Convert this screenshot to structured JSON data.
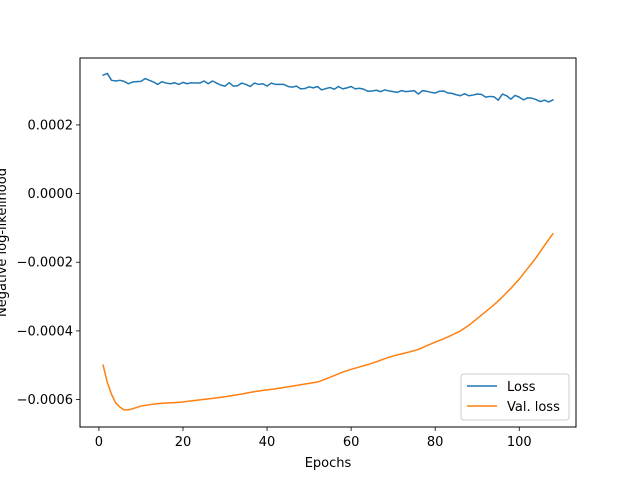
{
  "chart_data": {
    "type": "line",
    "title": "",
    "xlabel": "Epochs",
    "ylabel": "Negative log-likelihood",
    "xlim": [
      -4.5,
      113.5
    ],
    "ylim": [
      -0.00068,
      0.000395
    ],
    "xticks": [
      0,
      20,
      40,
      60,
      80,
      100
    ],
    "yticks": [
      -0.0006,
      -0.0004,
      -0.0002,
      0.0,
      0.0002
    ],
    "ytick_labels": [
      "−0.0006",
      "−0.0004",
      "−0.0002",
      "0.0000",
      "0.0002"
    ],
    "grid": false,
    "legend_position": "lower-right",
    "series": [
      {
        "name": "Loss",
        "color": "#1f77b4",
        "x": [
          1,
          2,
          3,
          4,
          5,
          6,
          7,
          8,
          9,
          10,
          11,
          12,
          13,
          14,
          15,
          16,
          17,
          18,
          19,
          20,
          21,
          22,
          23,
          24,
          25,
          26,
          27,
          28,
          29,
          30,
          31,
          32,
          33,
          34,
          35,
          36,
          37,
          38,
          39,
          40,
          41,
          42,
          43,
          44,
          45,
          46,
          47,
          48,
          49,
          50,
          51,
          52,
          53,
          54,
          55,
          56,
          57,
          58,
          59,
          60,
          61,
          62,
          63,
          64,
          65,
          66,
          67,
          68,
          69,
          70,
          71,
          72,
          73,
          74,
          75,
          76,
          77,
          78,
          79,
          80,
          81,
          82,
          83,
          84,
          85,
          86,
          87,
          88,
          89,
          90,
          91,
          92,
          93,
          94,
          95,
          96,
          97,
          98,
          99,
          100,
          101,
          102,
          103,
          104,
          105,
          106,
          107,
          108
        ],
        "y": [
          0.000345,
          0.00035,
          0.00033,
          0.000328,
          0.00033,
          0.000327,
          0.00032,
          0.000325,
          0.000326,
          0.000327,
          0.000335,
          0.00033,
          0.000325,
          0.000318,
          0.000326,
          0.000322,
          0.00032,
          0.000323,
          0.000318,
          0.000324,
          0.00032,
          0.000323,
          0.000322,
          0.000322,
          0.000328,
          0.00032,
          0.000328,
          0.000322,
          0.000316,
          0.000313,
          0.000323,
          0.000313,
          0.000314,
          0.000322,
          0.000318,
          0.000312,
          0.000322,
          0.000318,
          0.00032,
          0.000313,
          0.000322,
          0.000318,
          0.000318,
          0.000318,
          0.000312,
          0.00031,
          0.000313,
          0.000305,
          0.000306,
          0.000311,
          0.000308,
          0.000312,
          0.000302,
          0.000306,
          0.000309,
          0.000304,
          0.000312,
          0.000305,
          0.000308,
          0.000312,
          0.000305,
          0.000307,
          0.000304,
          0.000298,
          0.000299,
          0.000301,
          0.000297,
          0.000302,
          0.000299,
          0.000297,
          0.000295,
          0.0003,
          0.000297,
          0.000298,
          0.0003,
          0.00029,
          0.0003,
          0.000298,
          0.000295,
          0.000293,
          0.000298,
          0.000299,
          0.000293,
          0.000292,
          0.000288,
          0.000285,
          0.000291,
          0.000285,
          0.000287,
          0.00029,
          0.000289,
          0.000281,
          0.000283,
          0.000282,
          0.000272,
          0.00029,
          0.000285,
          0.000275,
          0.000286,
          0.000281,
          0.000273,
          0.000279,
          0.000278,
          0.000274,
          0.000268,
          0.000272,
          0.000267,
          0.000273
        ]
      },
      {
        "name": "Val. loss",
        "color": "#ff7f0e",
        "x": [
          1,
          2,
          3,
          4,
          5,
          6,
          7,
          8,
          9,
          10,
          12,
          14,
          16,
          18,
          20,
          22,
          24,
          26,
          28,
          30,
          32,
          34,
          36,
          38,
          40,
          42,
          44,
          46,
          48,
          50,
          52,
          54,
          56,
          58,
          60,
          62,
          64,
          66,
          68,
          70,
          72,
          74,
          76,
          78,
          80,
          82,
          84,
          86,
          88,
          90,
          92,
          94,
          96,
          98,
          100,
          102,
          104,
          106,
          108
        ],
        "y": [
          -0.0005,
          -0.00055,
          -0.000585,
          -0.00061,
          -0.000622,
          -0.00063,
          -0.00063,
          -0.000627,
          -0.000623,
          -0.000619,
          -0.000615,
          -0.000612,
          -0.00061,
          -0.000609,
          -0.000607,
          -0.000604,
          -0.000601,
          -0.000598,
          -0.000595,
          -0.000592,
          -0.000588,
          -0.000584,
          -0.000579,
          -0.000575,
          -0.000572,
          -0.000569,
          -0.000565,
          -0.000561,
          -0.000557,
          -0.000553,
          -0.000549,
          -0.00054,
          -0.00053,
          -0.00052,
          -0.000512,
          -0.000505,
          -0.000498,
          -0.00049,
          -0.000481,
          -0.000473,
          -0.000467,
          -0.000461,
          -0.000454,
          -0.000443,
          -0.000433,
          -0.000423,
          -0.000412,
          -0.0004,
          -0.000384,
          -0.000364,
          -0.000344,
          -0.000324,
          -0.000301,
          -0.000276,
          -0.000249,
          -0.000218,
          -0.000187,
          -0.000151,
          -0.000117
        ]
      }
    ]
  }
}
